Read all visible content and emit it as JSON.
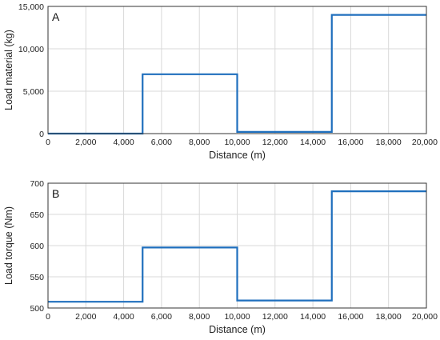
{
  "chart_data": [
    {
      "type": "line",
      "panel": "A",
      "xlabel": "Distance (m)",
      "ylabel": "Load material (kg)",
      "xlim": [
        0,
        20000
      ],
      "ylim": [
        0,
        15000
      ],
      "xticks": [
        0,
        2000,
        4000,
        6000,
        8000,
        10000,
        12000,
        14000,
        16000,
        18000,
        20000
      ],
      "xtick_labels": [
        "0",
        "2,000",
        "4,000",
        "6,000",
        "8,000",
        "10,000",
        "12,000",
        "14,000",
        "16,000",
        "18,000",
        "20,000"
      ],
      "yticks": [
        0,
        5000,
        10000,
        15000
      ],
      "ytick_labels": [
        "0",
        "5,000",
        "10,000",
        "15,000"
      ],
      "grid": true,
      "series": [
        {
          "color": "#1f6fbd",
          "x": [
            0,
            5000,
            5000,
            10000,
            10000,
            15000,
            15000,
            20000
          ],
          "y": [
            0,
            0,
            7000,
            7000,
            200,
            200,
            14000,
            14000
          ]
        }
      ]
    },
    {
      "type": "line",
      "panel": "B",
      "xlabel": "Distance (m)",
      "ylabel": "Load torque (Nm)",
      "xlim": [
        0,
        20000
      ],
      "ylim": [
        500,
        700
      ],
      "xticks": [
        0,
        2000,
        4000,
        6000,
        8000,
        10000,
        12000,
        14000,
        16000,
        18000,
        20000
      ],
      "xtick_labels": [
        "0",
        "2,000",
        "4,000",
        "6,000",
        "8,000",
        "10,000",
        "12,000",
        "14,000",
        "16,000",
        "18,000",
        "20,000"
      ],
      "yticks": [
        500,
        550,
        600,
        650,
        700
      ],
      "ytick_labels": [
        "500",
        "550",
        "600",
        "650",
        "700"
      ],
      "grid": true,
      "series": [
        {
          "color": "#1f6fbd",
          "x": [
            0,
            5000,
            5000,
            10000,
            10000,
            15000,
            15000,
            20000
          ],
          "y": [
            510,
            510,
            597,
            597,
            512,
            512,
            687,
            687
          ]
        }
      ]
    }
  ]
}
